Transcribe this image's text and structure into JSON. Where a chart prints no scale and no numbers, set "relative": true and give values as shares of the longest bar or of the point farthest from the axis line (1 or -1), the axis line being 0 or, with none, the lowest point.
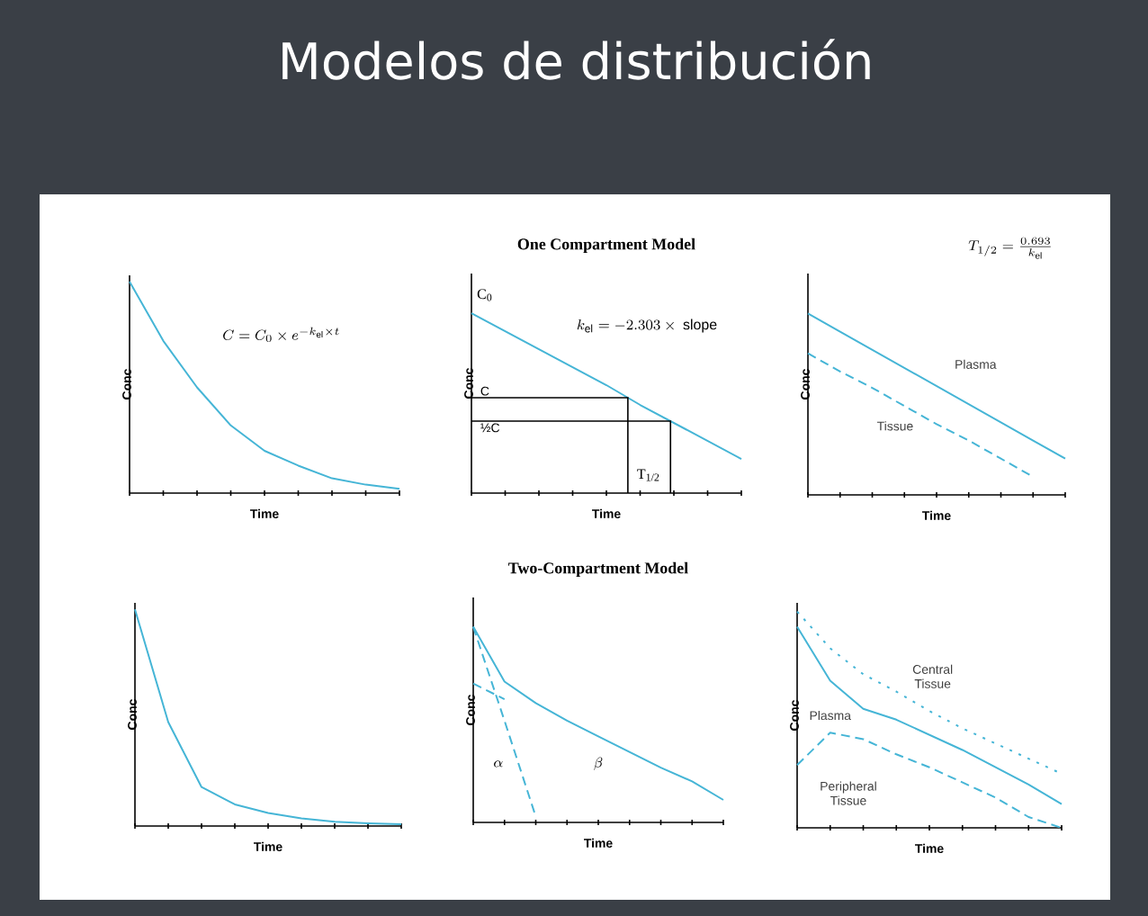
{
  "chart_data": [
    {
      "type": "line",
      "title": "Modelos de distribución",
      "xlabel": "Time",
      "ylabel": "Conc",
      "relative": true,
      "categories": [
        null,
        null,
        null,
        null,
        null,
        null,
        null,
        null,
        null
      ],
      "series": [
        {
          "color": "#45b5d6",
          "values": [
            1.0,
            0.72,
            0.5,
            0.32,
            0.2,
            0.13,
            0.07,
            0.04,
            0.02
          ]
        }
      ],
      "annotations": [
        "C = C_0 \\times e^{-k_{\\mathrm{el}}\\times t}"
      ]
    },
    {
      "type": "line",
      "title": "One Compartment Model",
      "xlabel": "Time",
      "ylabel": "Conc",
      "relative": true,
      "categories": [
        null,
        null,
        null,
        null,
        null,
        null,
        null,
        null,
        null
      ],
      "series": [
        {
          "color": "#45b5d6",
          "values": [
            1.0,
            0.9,
            0.8,
            0.7,
            0.6,
            0.49,
            0.39,
            0.29,
            0.19
          ]
        }
      ],
      "ref_lines": [
        {
          "axis": "y",
          "value": 0.53,
          "label": "C"
        },
        {
          "axis": "y",
          "value": 0.4,
          "label": "½C"
        }
      ],
      "annotations": [
        "C$_{0}$",
        "k_{\\mathrm{el}} = -2.303\\times\\ \\mathrm{slope}",
        "T$_{1/2}$"
      ]
    },
    {
      "type": "line",
      "xlabel": "Time",
      "ylabel": "Conc",
      "relative": true,
      "categories": [
        null,
        null,
        null,
        null,
        null,
        null,
        null,
        null,
        null
      ],
      "series": [
        {
          "name": "Plasma",
          "color": "#45b5d6",
          "values": [
            1.0,
            0.9,
            0.8,
            0.7,
            0.6,
            0.5,
            0.4,
            0.3,
            0.2
          ]
        },
        {
          "name": "Tissue",
          "color": "#45b5d6",
          "line_style": "dashed",
          "values": [
            0.78,
            0.68,
            0.59,
            0.49,
            0.39,
            0.3,
            0.2,
            0.1,
            null
          ]
        }
      ],
      "annotations": [
        "T_{1/2} = \\frac{0.693}{k_{\\mathrm{el}}}"
      ]
    },
    {
      "type": "line",
      "xlabel": "Time",
      "ylabel": "Conc",
      "relative": true,
      "categories": [
        null,
        null,
        null,
        null,
        null,
        null,
        null,
        null,
        null
      ],
      "series": [
        {
          "color": "#45b5d6",
          "values": [
            1.0,
            0.48,
            0.18,
            0.1,
            0.06,
            0.035,
            0.02,
            0.013,
            0.008
          ]
        }
      ]
    },
    {
      "type": "line",
      "title": "Two-Compartment Model",
      "xlabel": "Time",
      "ylabel": "Conc",
      "relative": true,
      "categories": [
        null,
        null,
        null,
        null,
        null,
        null,
        null,
        null,
        null
      ],
      "series": [
        {
          "color": "#45b5d6",
          "values": [
            1.0,
            0.72,
            0.61,
            0.52,
            0.44,
            0.36,
            0.28,
            0.21,
            0.115
          ]
        },
        {
          "color": "#45b5d6",
          "line_style": "dashed",
          "values": [
            1.0,
            0.52,
            0.03,
            null,
            null,
            null,
            null,
            null,
            null
          ]
        },
        {
          "color": "#45b5d6",
          "line_style": "dashed",
          "values": [
            0.71,
            0.63,
            null,
            null,
            null,
            null,
            null,
            null,
            null
          ]
        }
      ],
      "annotations": [
        "\\alpha",
        "\\beta"
      ]
    },
    {
      "type": "line",
      "xlabel": "Time",
      "ylabel": "Conc",
      "relative": true,
      "categories": [
        null,
        null,
        null,
        null,
        null,
        null,
        null,
        null,
        null
      ],
      "series": [
        {
          "name": "Central Tissue",
          "color": "#45b5d6",
          "line_style": "dotted",
          "values": [
            1.0,
            0.83,
            0.71,
            0.63,
            0.54,
            0.46,
            0.39,
            0.32,
            0.25
          ]
        },
        {
          "name": "Plasma",
          "color": "#45b5d6",
          "values": [
            0.93,
            0.68,
            0.55,
            0.5,
            0.43,
            0.36,
            0.28,
            0.2,
            0.11
          ]
        },
        {
          "name": "Peripheral Tissue",
          "color": "#45b5d6",
          "line_style": "dashed",
          "values": [
            0.29,
            0.44,
            0.41,
            0.34,
            0.28,
            0.21,
            0.14,
            0.05,
            0.0
          ]
        }
      ]
    }
  ]
}
